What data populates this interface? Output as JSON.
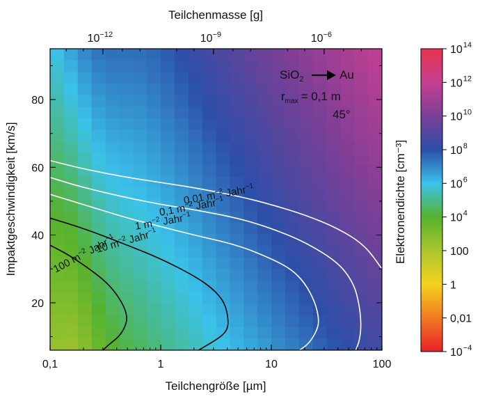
{
  "chart_data": {
    "type": "heatmap",
    "title": "",
    "xlabel": "Teilchengröße [µm]",
    "x_top_label": "Teilchenmasse [g]",
    "ylabel": "Impaktgeschwindigkeit [km/s]",
    "colorbar_label": "Elektronendichte [cm⁻³]",
    "x_scale": "log",
    "xlim": [
      0.1,
      100
    ],
    "ylim": [
      6,
      95
    ],
    "x_ticks": [
      {
        "v": 0.1,
        "label": "0,1"
      },
      {
        "v": 1,
        "label": "1"
      },
      {
        "v": 10,
        "label": "10"
      },
      {
        "v": 100,
        "label": "100"
      }
    ],
    "y_ticks": [
      {
        "v": 20,
        "label": "20"
      },
      {
        "v": 40,
        "label": "40"
      },
      {
        "v": 60,
        "label": "60"
      },
      {
        "v": 80,
        "label": "80"
      }
    ],
    "x_top_ticks": [
      {
        "v": 0.3,
        "base": "10",
        "exp": "−12"
      },
      {
        "v": 3,
        "base": "10",
        "exp": "−9"
      },
      {
        "v": 30,
        "base": "10",
        "exp": "−6"
      }
    ],
    "colorbar": {
      "scale": "log",
      "range_exponents": [
        -4,
        14
      ],
      "colors": [
        "#e8202a",
        "#f07a22",
        "#f5d21e",
        "#aac62c",
        "#56b22e",
        "#3bc2ea",
        "#2c4fa8",
        "#7a3f96",
        "#c43f92",
        "#e8334c"
      ],
      "ticks": [
        {
          "e": 14,
          "base": "10",
          "exp": "14"
        },
        {
          "e": 12,
          "base": "10",
          "exp": "12"
        },
        {
          "e": 10,
          "base": "10",
          "exp": "10"
        },
        {
          "e": 8,
          "base": "10",
          "exp": "8"
        },
        {
          "e": 6,
          "base": "10",
          "exp": "6"
        },
        {
          "e": 4,
          "base": "10",
          "exp": "4"
        },
        {
          "e": 2,
          "base": "100",
          "exp": ""
        },
        {
          "e": 0,
          "base": "1",
          "exp": ""
        },
        {
          "e": -2,
          "base": "0,01",
          "exp": ""
        },
        {
          "e": -4,
          "base": "10",
          "exp": "−4"
        }
      ]
    },
    "annotation": {
      "reaction_from": "SiO",
      "reaction_from_sub": "2",
      "reaction_to": "Au",
      "rmax_text": "r",
      "rmax_sub": "max",
      "rmax_value": "= 0,1 m",
      "angle": "45°"
    },
    "contours": [
      {
        "label_main": "0,01 m",
        "label_exp": "−2",
        "label_tail": " Jahr",
        "label_exp2": "−1",
        "color": "#ffffff",
        "x": [
          0.1,
          0.2,
          0.5,
          1,
          2,
          5,
          10,
          20,
          40,
          70,
          100
        ],
        "y": [
          62,
          59.5,
          57,
          55.5,
          54,
          51.5,
          49,
          46,
          42,
          37,
          30
        ]
      },
      {
        "label_main": "0,1 m",
        "label_exp": "−2",
        "label_tail": " Jahr",
        "label_exp2": "−1",
        "color": "#ffffff",
        "x": [
          0.1,
          0.2,
          0.5,
          1,
          2,
          5,
          10,
          20,
          40,
          55,
          62,
          65,
          63,
          58
        ],
        "y": [
          57,
          54,
          51,
          49,
          47.5,
          45,
          42,
          38,
          32,
          26,
          20,
          14,
          9,
          6
        ]
      },
      {
        "label_main": "1 m",
        "label_exp": "−2",
        "label_tail": " Jahr",
        "label_exp2": "−1",
        "color": "#ffffff",
        "x": [
          0.1,
          0.2,
          0.5,
          1,
          2,
          5,
          10,
          15,
          20,
          25,
          27,
          26,
          22,
          18
        ],
        "y": [
          52,
          49,
          45,
          42.5,
          40,
          37,
          33,
          30,
          26,
          20,
          15,
          12,
          8,
          6
        ]
      },
      {
        "label_main": "10 m",
        "label_exp": "−2",
        "label_tail": " Jahr",
        "label_exp2": "−1",
        "color": "#000000",
        "x": [
          0.1,
          0.2,
          0.5,
          1,
          2,
          3,
          3.8,
          4.1,
          4,
          3.5,
          2.8,
          2.2
        ],
        "y": [
          45,
          42,
          37,
          33,
          28,
          24,
          20,
          15,
          12,
          10,
          8,
          6
        ]
      },
      {
        "label_main": "100 m",
        "label_exp": "−2",
        "label_tail": " Jahr",
        "label_exp2": "−1",
        "color": "#000000",
        "x": [
          0.1,
          0.15,
          0.25,
          0.35,
          0.45,
          0.5,
          0.48,
          0.42,
          0.35,
          0.3
        ],
        "y": [
          37,
          34,
          29,
          25,
          20,
          16,
          13,
          10,
          8,
          6
        ]
      }
    ],
    "heatmap": {
      "note": "electron density exponent log10(n) per cell; rows top->bottom (y 95 -> 6), cols left->right (x 0.1 -> 100)",
      "cols": 24,
      "rows": 26,
      "z_top_left": 5.6,
      "z_top_right": 11.8,
      "z_bottom_left": 3.2,
      "z_bottom_right": 8.6
    }
  }
}
